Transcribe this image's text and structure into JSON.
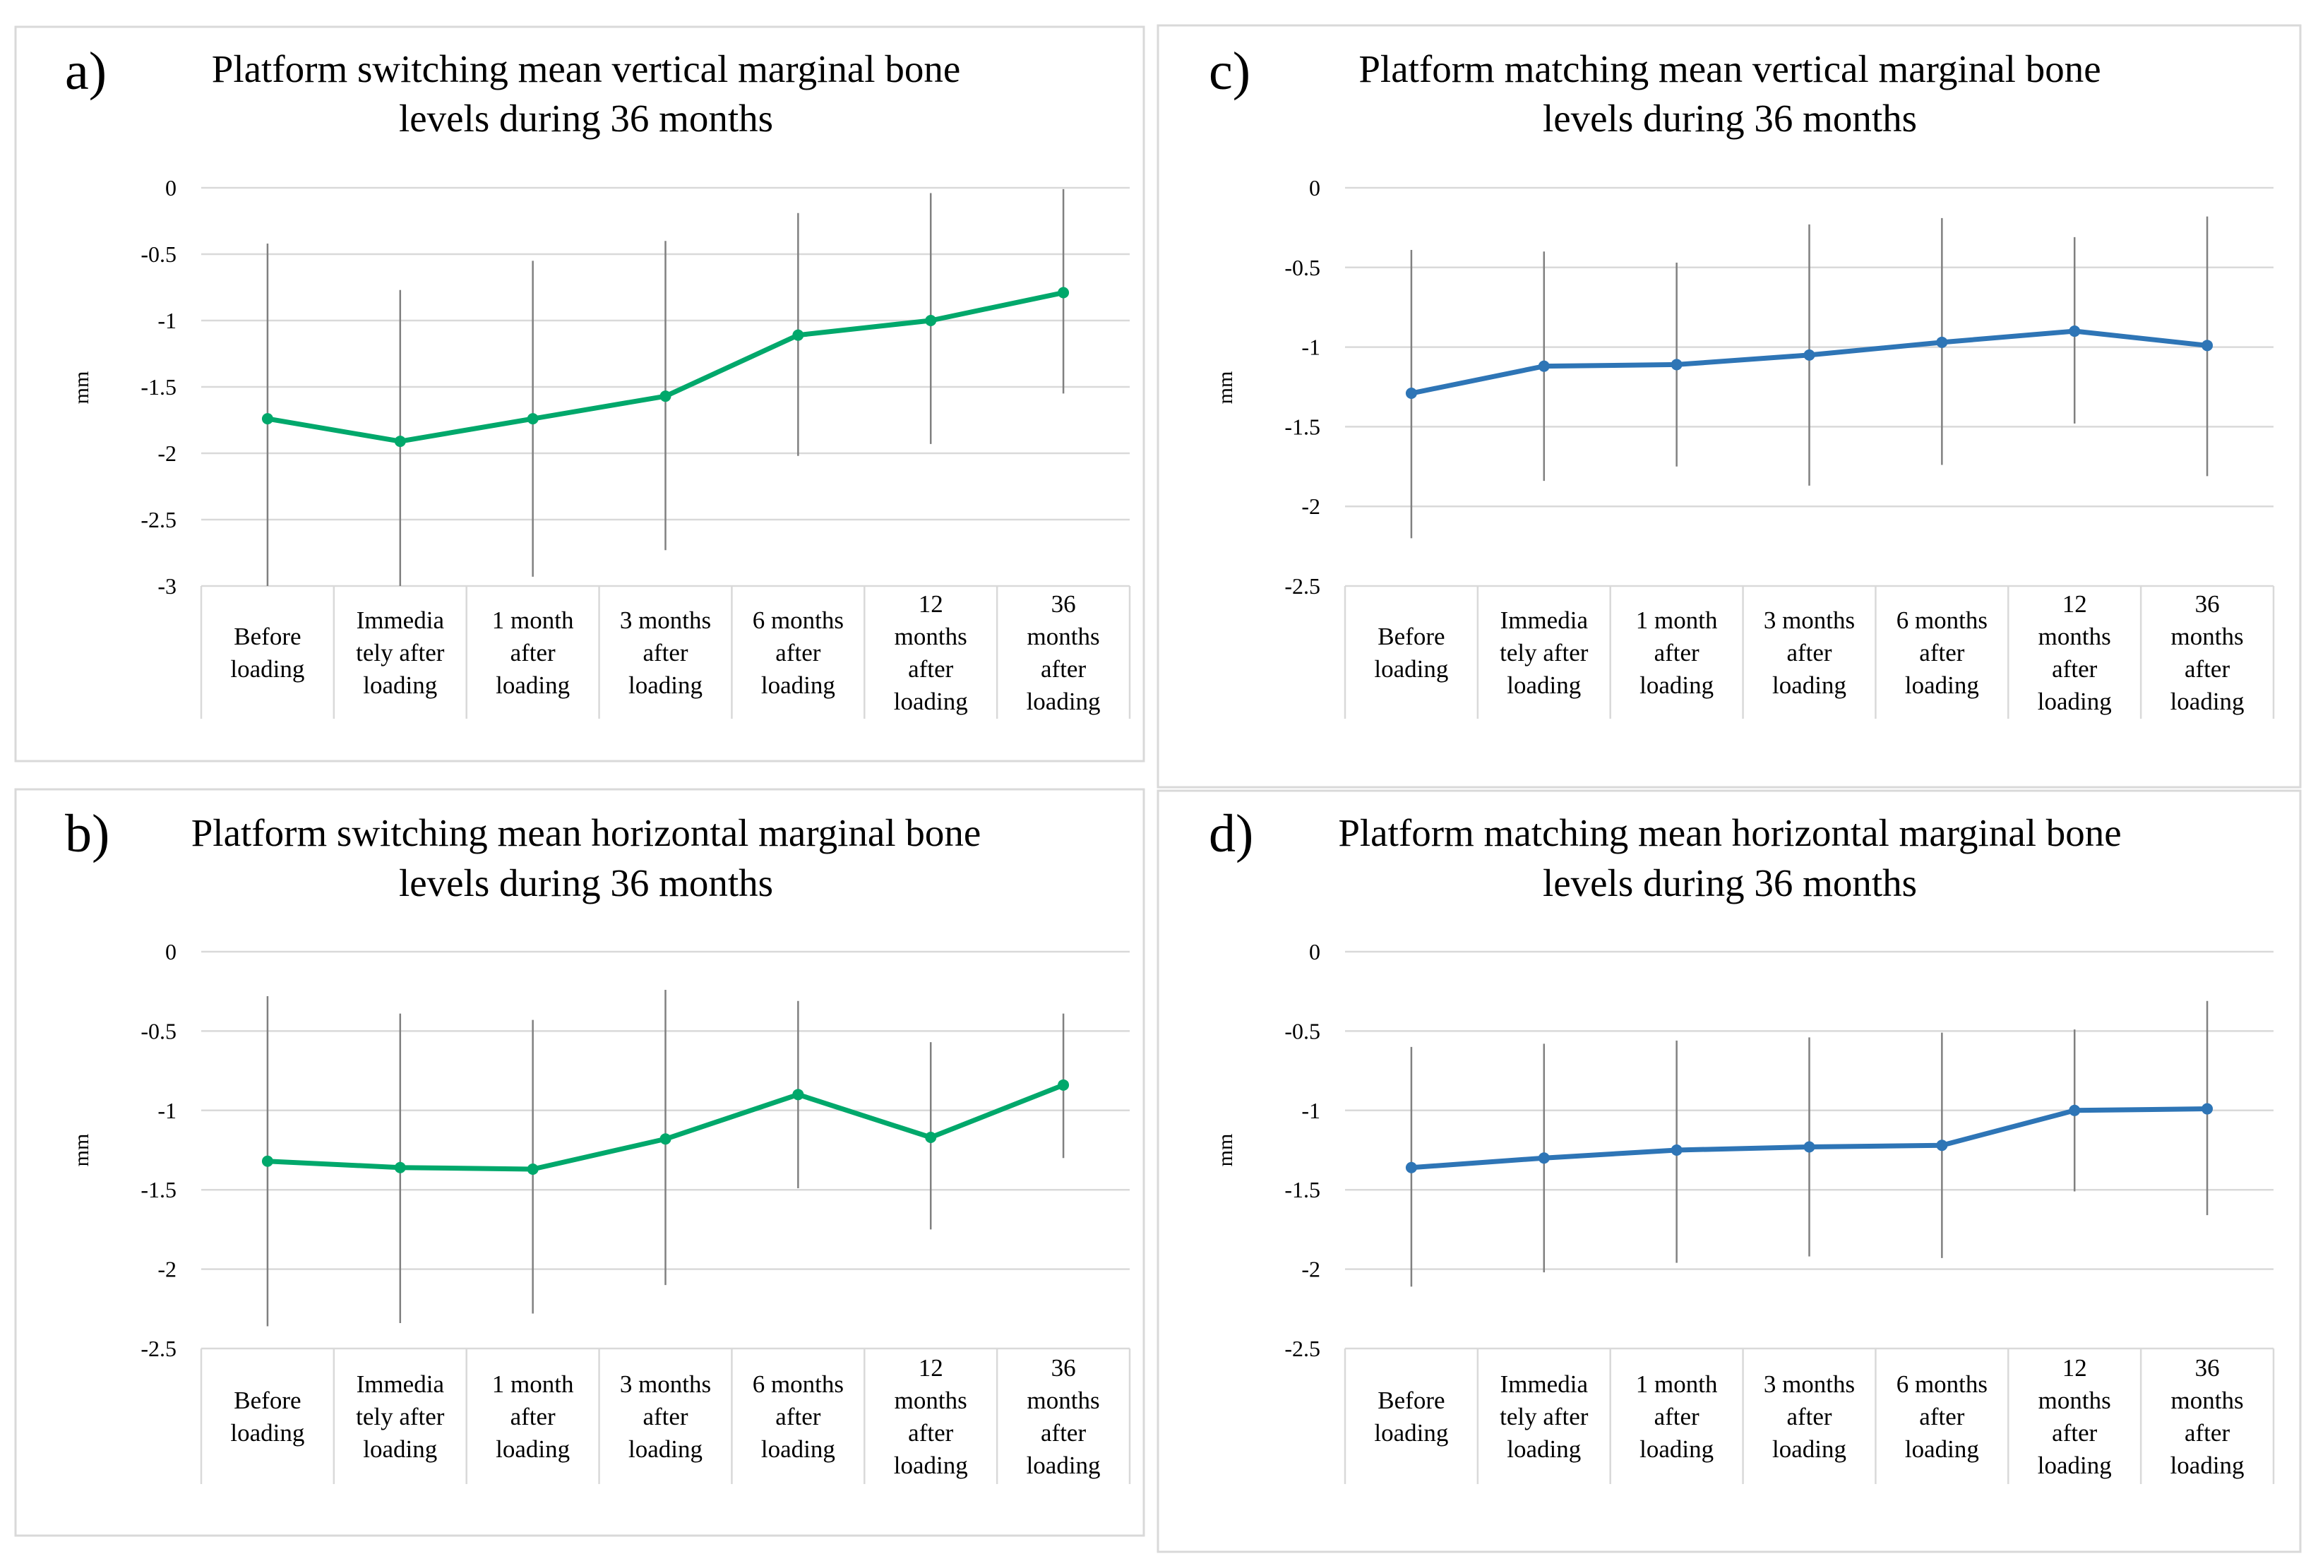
{
  "chart_data": [
    {
      "panel_label": "a)",
      "type": "line",
      "title_lines": [
        "Platform switching mean vertical marginal bone",
        "levels during 36 months"
      ],
      "ylabel": "mm",
      "ylim": [
        -3,
        0
      ],
      "yticks": [
        0,
        -0.5,
        -1,
        -1.5,
        -2,
        -2.5,
        -3
      ],
      "ytick_labels": [
        "0",
        "-0.5",
        "-1",
        "-1.5",
        "-2",
        "-2.5",
        "-3"
      ],
      "categories": [
        [
          "Before",
          "loading"
        ],
        [
          "Immedia",
          "tely after",
          "loading"
        ],
        [
          "1 month",
          "after",
          "loading"
        ],
        [
          "3 months",
          "after",
          "loading"
        ],
        [
          "6 months",
          "after",
          "loading"
        ],
        [
          "12",
          "months",
          "after",
          "loading"
        ],
        [
          "36",
          "months",
          "after",
          "loading"
        ]
      ],
      "values": [
        -1.74,
        -1.91,
        -1.74,
        -1.57,
        -1.11,
        -1.0,
        -0.79
      ],
      "err_low": [
        -3.0,
        -3.0,
        -2.93,
        -2.73,
        -2.02,
        -1.93,
        -1.55
      ],
      "err_high": [
        -0.42,
        -0.77,
        -0.55,
        -0.4,
        -0.19,
        -0.04,
        -0.01
      ],
      "color": "#00a86b"
    },
    {
      "panel_label": "b)",
      "type": "line",
      "title_lines": [
        "Platform switching mean horizontal marginal bone",
        "levels during 36 months"
      ],
      "ylabel": "mm",
      "ylim": [
        -2.5,
        0
      ],
      "yticks": [
        0,
        -0.5,
        -1,
        -1.5,
        -2,
        -2.5
      ],
      "ytick_labels": [
        "0",
        "-0.5",
        "-1",
        "-1.5",
        "-2",
        "-2.5"
      ],
      "categories": [
        [
          "Before",
          "loading"
        ],
        [
          "Immedia",
          "tely after",
          "loading"
        ],
        [
          "1 month",
          "after",
          "loading"
        ],
        [
          "3 months",
          "after",
          "loading"
        ],
        [
          "6 months",
          "after",
          "loading"
        ],
        [
          "12",
          "months",
          "after",
          "loading"
        ],
        [
          "36",
          "months",
          "after",
          "loading"
        ]
      ],
      "values": [
        -1.32,
        -1.36,
        -1.37,
        -1.18,
        -0.9,
        -1.17,
        -0.84
      ],
      "err_low": [
        -2.36,
        -2.34,
        -2.28,
        -2.1,
        -1.49,
        -1.75,
        -1.3
      ],
      "err_high": [
        -0.28,
        -0.39,
        -0.43,
        -0.24,
        -0.31,
        -0.57,
        -0.39
      ],
      "color": "#00a86b"
    },
    {
      "panel_label": "c)",
      "type": "line",
      "title_lines": [
        "Platform matching mean vertical marginal bone",
        "levels during 36 months"
      ],
      "ylabel": "mm",
      "ylim": [
        -2.5,
        0
      ],
      "yticks": [
        0,
        -0.5,
        -1,
        -1.5,
        -2,
        -2.5
      ],
      "ytick_labels": [
        "0",
        "-0.5",
        "-1",
        "-1.5",
        "-2",
        "-2.5"
      ],
      "categories": [
        [
          "Before",
          "loading"
        ],
        [
          "Immedia",
          "tely after",
          "loading"
        ],
        [
          "1 month",
          "after",
          "loading"
        ],
        [
          "3 months",
          "after",
          "loading"
        ],
        [
          "6 months",
          "after",
          "loading"
        ],
        [
          "12",
          "months",
          "after",
          "loading"
        ],
        [
          "36",
          "months",
          "after",
          "loading"
        ]
      ],
      "values": [
        -1.29,
        -1.12,
        -1.11,
        -1.05,
        -0.97,
        -0.9,
        -0.99
      ],
      "err_low": [
        -2.2,
        -1.84,
        -1.75,
        -1.87,
        -1.74,
        -1.48,
        -1.81
      ],
      "err_high": [
        -0.39,
        -0.4,
        -0.47,
        -0.23,
        -0.19,
        -0.31,
        -0.18
      ],
      "color": "#2e75b6"
    },
    {
      "panel_label": "d)",
      "type": "line",
      "title_lines": [
        "Platform matching mean horizontal marginal bone",
        "levels during 36 months"
      ],
      "ylabel": "mm",
      "ylim": [
        -2.5,
        0
      ],
      "yticks": [
        0,
        -0.5,
        -1,
        -1.5,
        -2,
        -2.5
      ],
      "ytick_labels": [
        "0",
        "-0.5",
        "-1",
        "-1.5",
        "-2",
        "-2.5"
      ],
      "categories": [
        [
          "Before",
          "loading"
        ],
        [
          "Immedia",
          "tely after",
          "loading"
        ],
        [
          "1 month",
          "after",
          "loading"
        ],
        [
          "3 months",
          "after",
          "loading"
        ],
        [
          "6 months",
          "after",
          "loading"
        ],
        [
          "12",
          "months",
          "after",
          "loading"
        ],
        [
          "36",
          "months",
          "after",
          "loading"
        ]
      ],
      "values": [
        -1.36,
        -1.3,
        -1.25,
        -1.23,
        -1.22,
        -1.0,
        -0.99
      ],
      "err_low": [
        -2.11,
        -2.02,
        -1.96,
        -1.92,
        -1.93,
        -1.51,
        -1.66
      ],
      "err_high": [
        -0.6,
        -0.58,
        -0.56,
        -0.54,
        -0.51,
        -0.49,
        -0.31
      ],
      "color": "#2e75b6"
    }
  ]
}
